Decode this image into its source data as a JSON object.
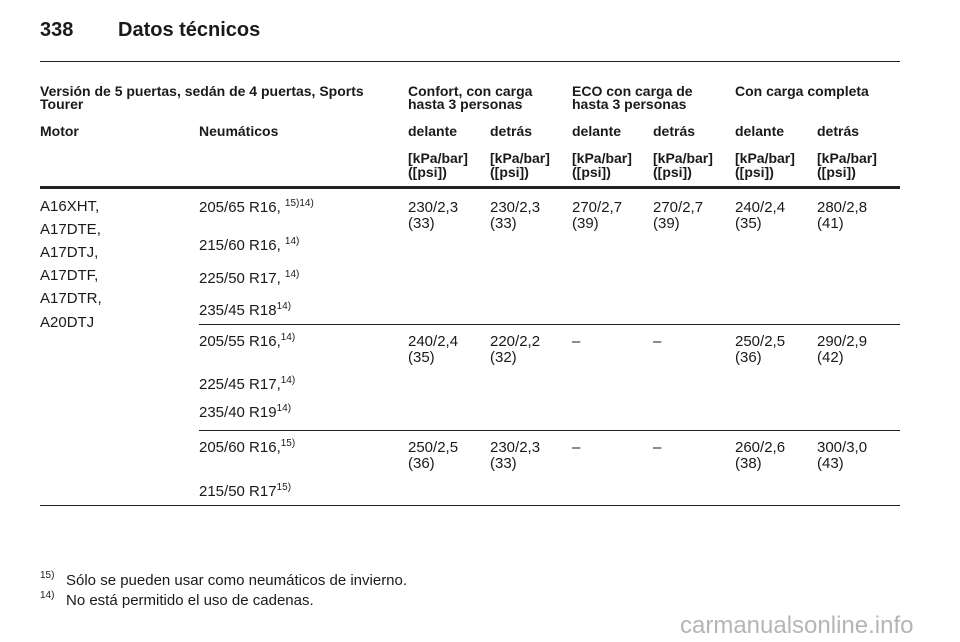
{
  "header": {
    "page": "338",
    "title": "Datos técnicos"
  },
  "table": {
    "group_headers": [
      "Versión de 5 puertas, sedán de 4 puertas, Sports Tourer",
      "Confort, con carga hasta 3 personas",
      "ECO con carga de hasta 3 personas",
      "Con carga completa"
    ],
    "column_headers": [
      "Motor",
      "Neumáticos",
      "delante",
      "detrás",
      "delante",
      "detrás",
      "delante",
      "detrás"
    ],
    "units": [
      {
        "unit": "[kPa/bar]",
        "psi": "([psi])"
      },
      {
        "unit": "[kPa/bar]",
        "psi": "([psi])"
      },
      {
        "unit": "[kPa/bar]",
        "psi": "([psi])"
      },
      {
        "unit": "[kPa/bar]",
        "psi": "([psi])"
      },
      {
        "unit": "[kPa/bar]",
        "psi": "([psi])"
      },
      {
        "unit": "[kPa/bar]",
        "psi": "([psi])"
      }
    ],
    "engines": [
      "A16XHT,",
      "A17DTE,",
      "A17DTJ,",
      "A17DTF,",
      "A17DTR,",
      "A20DTJ"
    ],
    "groups": [
      {
        "tires": [
          {
            "size": "205/65 R16, ",
            "note": "15)14)"
          },
          {
            "size": "215/60 R16, ",
            "note": "14)"
          },
          {
            "size": "225/50 R17, ",
            "note": "14)"
          },
          {
            "size": "235/45 R18",
            "note": "14)"
          }
        ],
        "pressures": [
          {
            "value": "230/2,3",
            "psi": "(33)"
          },
          {
            "value": "230/2,3",
            "psi": "(33)"
          },
          {
            "value": "270/2,7",
            "psi": "(39)"
          },
          {
            "value": "270/2,7",
            "psi": "(39)"
          },
          {
            "value": "240/2,4",
            "psi": "(35)"
          },
          {
            "value": "280/2,8",
            "psi": "(41)"
          }
        ]
      },
      {
        "tires": [
          {
            "size": "205/55 R16,",
            "note": "14)"
          },
          {
            "size": "225/45 R17,",
            "note": "14)"
          },
          {
            "size": "235/40 R19",
            "note": "14)"
          }
        ],
        "pressures": [
          {
            "value": "240/2,4",
            "psi": "(35)"
          },
          {
            "value": "220/2,2",
            "psi": "(32)"
          },
          {
            "value": "–"
          },
          {
            "value": "–"
          },
          {
            "value": "250/2,5",
            "psi": "(36)"
          },
          {
            "value": "290/2,9",
            "psi": "(42)"
          }
        ]
      },
      {
        "tires": [
          {
            "size": "205/60 R16,",
            "note": "15)"
          },
          {
            "size": "215/50 R17",
            "note": "15)"
          }
        ],
        "pressures": [
          {
            "value": "250/2,5",
            "psi": "(36)"
          },
          {
            "value": "230/2,3",
            "psi": "(33)"
          },
          {
            "value": "–"
          },
          {
            "value": "–"
          },
          {
            "value": "260/2,6",
            "psi": "(38)"
          },
          {
            "value": "300/3,0",
            "psi": "(43)"
          }
        ]
      }
    ]
  },
  "footnotes": [
    {
      "mark": "15)",
      "text": "Sólo se pueden usar como neumáticos de invierno."
    },
    {
      "mark": "14)",
      "text": "No está permitido el uso de cadenas."
    }
  ],
  "watermark": "carmanualsonline.info"
}
